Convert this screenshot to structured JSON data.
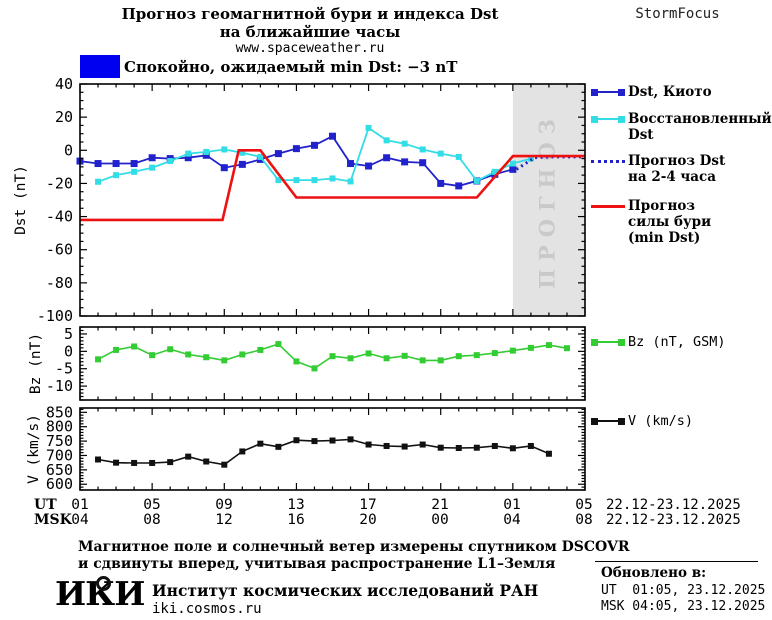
{
  "header": {
    "title_line1": "Прогноз геомагнитной бури и индекса Dst",
    "title_line2": "на ближайшие часы",
    "website": "www.spaceweather.ru",
    "brand": "StormFocus",
    "status_text": "Спокойно, ожидаемый min Dst: −3 nT",
    "status_color": "#0000f0"
  },
  "colors": {
    "dst_kyoto": "#2222cc",
    "dst_restored": "#33dde6",
    "storm_forecast": "#ee1111",
    "bz": "#33cc33",
    "v": "#111111",
    "forecast_band": "#e3e3e3",
    "watermark_text": "#c9c9c9"
  },
  "chart_data": [
    {
      "panel": "dst",
      "type": "line",
      "ylabel": "Dst (nT)",
      "ylim": [
        -100,
        40
      ],
      "yticks": [
        40,
        20,
        0,
        -20,
        -40,
        -60,
        -80,
        -100
      ],
      "y_minor_step": 5,
      "xlim_hours": [
        0,
        28
      ],
      "x_major_step_hours": 4,
      "x_minor_step_hours": 1,
      "forecast_region": {
        "start_hour": 24,
        "end_hour": 28,
        "watermark": "ПРОГНОЗ"
      },
      "series": [
        {
          "name": "Dst, Киото",
          "color": "#2222cc",
          "marker": true,
          "marker_size": 7,
          "width": 1.8,
          "start_hour": 0,
          "step_hours": 1,
          "values": [
            -6.5,
            -8,
            -8,
            -8,
            -4.5,
            -5,
            -4.5,
            -3,
            -10.5,
            -8.5,
            -5.5,
            -2,
            1,
            3,
            8.5,
            -8,
            -9.5,
            -4.5,
            -7,
            -7.5,
            -20,
            -21.5,
            -18.5,
            -14.5,
            -11.5
          ]
        },
        {
          "name": "Восстановленный Dst",
          "color": "#33dde6",
          "marker": true,
          "marker_size": 6,
          "width": 1.8,
          "start_hour": 1,
          "step_hours": 1,
          "values": [
            -19,
            -15,
            -13,
            -10.5,
            -6.5,
            -2,
            -1,
            0.5,
            -1.5,
            -4,
            -18,
            -18,
            -18,
            -17,
            -18.8,
            13.5,
            6,
            4,
            0.5,
            -2,
            -4,
            -18.5,
            -13,
            -8,
            -5
          ]
        },
        {
          "name": "Прогноз Dst на 2-4 часа",
          "color": "#2222cc",
          "dash": "2,3.5",
          "width": 3,
          "points": [
            [
              24.2,
              -11.5
            ],
            [
              25.2,
              -4.5
            ],
            [
              26,
              -4
            ],
            [
              28,
              -4
            ]
          ]
        },
        {
          "name": "Прогноз силы бури (min Dst)",
          "color": "#ee1111",
          "width": 2.6,
          "points": [
            [
              0,
              -42
            ],
            [
              7.9,
              -42
            ],
            [
              8.8,
              0
            ],
            [
              10,
              0
            ],
            [
              12,
              -28.5
            ],
            [
              22,
              -28.5
            ],
            [
              24,
              -3.5
            ],
            [
              28,
              -3.5
            ]
          ]
        }
      ]
    },
    {
      "panel": "bz",
      "type": "line",
      "ylabel": "Bz (nT)",
      "ylim": [
        -14,
        7
      ],
      "yticks": [
        5,
        0,
        -5,
        -10
      ],
      "y_minor_step": 1,
      "xlim_hours": [
        0,
        28
      ],
      "x_major_step_hours": 4,
      "x_minor_step_hours": 1,
      "series": [
        {
          "name": "Bz (nT, GSM)",
          "color": "#33cc33",
          "marker": true,
          "marker_size": 6,
          "width": 1.6,
          "start_hour": 1,
          "step_hours": 1,
          "values": [
            -2.3,
            0.4,
            1.4,
            -1.1,
            0.6,
            -0.9,
            -1.7,
            -2.6,
            -0.9,
            0.4,
            2.1,
            -2.9,
            -4.9,
            -1.4,
            -2,
            -0.6,
            -2,
            -1.3,
            -2.6,
            -2.6,
            -1.4,
            -1.1,
            -0.5,
            0.2,
            1,
            1.8,
            0.9
          ]
        }
      ]
    },
    {
      "panel": "v",
      "type": "line",
      "ylabel": "V (km/s)",
      "ylim": [
        580,
        865
      ],
      "yticks": [
        850,
        800,
        750,
        700,
        650,
        600
      ],
      "y_minor_step": 10,
      "xlim_hours": [
        0,
        28
      ],
      "x_major_step_hours": 4,
      "x_minor_step_hours": 1,
      "series": [
        {
          "name": "V (km/s)",
          "color": "#111111",
          "marker": true,
          "marker_size": 6,
          "width": 1.6,
          "start_hour": 1,
          "step_hours": 1,
          "values": [
            686,
            675,
            674,
            674,
            677,
            696,
            679,
            668,
            714,
            741,
            730,
            753,
            750,
            752,
            756,
            738,
            733,
            731,
            738,
            727,
            726,
            727,
            733,
            725,
            733,
            706
          ]
        }
      ]
    }
  ],
  "axis": {
    "ut_label": "UT",
    "msk_label": "MSK",
    "ut_ticks": [
      "01",
      "05",
      "09",
      "13",
      "17",
      "21",
      "01",
      "05"
    ],
    "msk_ticks": [
      "04",
      "08",
      "12",
      "16",
      "20",
      "00",
      "04",
      "08"
    ],
    "ut_date": "22.12-23.12.2025",
    "msk_date": "22.12-23.12.2025"
  },
  "legend": {
    "items": [
      {
        "label": "Dst, Киото",
        "color": "#2222cc",
        "style": "line-squares"
      },
      {
        "label": "Восстановленный\nDst",
        "color": "#33dde6",
        "style": "line-squares"
      },
      {
        "label": "Прогноз Dst\nна 2-4 часа",
        "color": "#2222cc",
        "style": "dotted"
      },
      {
        "label": "Прогноз\nсилы бури\n(min Dst)",
        "color": "#ee1111",
        "style": "line"
      },
      {
        "label": "Bz (nT, GSM)",
        "color": "#33cc33",
        "style": "line-squares"
      },
      {
        "label": "V (km/s)",
        "color": "#111111",
        "style": "line-squares"
      }
    ]
  },
  "footer": {
    "note_line1": "Магнитное поле и солнечный ветер измерены спутником DSCOVR",
    "note_line2": "и сдвинуты вперед, учитывая распространение L1–Земля",
    "logo_text": "ИКИ",
    "institute": "Институт космических исследований РАН",
    "institute_site": "iki.cosmos.ru",
    "updated_label": "Обновлено в:",
    "updated_ut": "UT  01:05, 23.12.2025",
    "updated_msk": "MSK 04:05, 23.12.2025"
  }
}
